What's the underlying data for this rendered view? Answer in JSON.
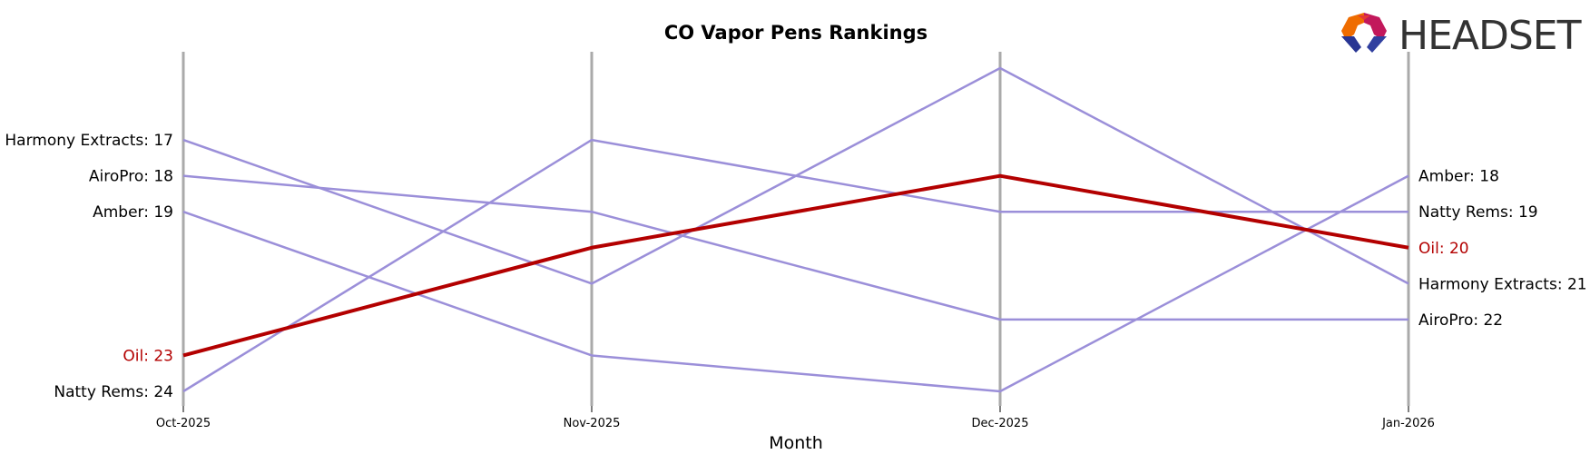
{
  "chart_data": {
    "type": "line",
    "title": "CO Vapor Pens Rankings",
    "xlabel": "Month",
    "ylabel": "",
    "categories": [
      "Oct-2025",
      "Nov-2025",
      "Dec-2025",
      "Jan-2026"
    ],
    "y_inverted": true,
    "ylim": [
      25,
      15
    ],
    "grid": false,
    "highlight_color": "#b30000",
    "series_color": "#9b8fd9",
    "axis_line_color": "#aaaaaa",
    "series": [
      {
        "name": "Harmony Extracts",
        "values": [
          17,
          21,
          15,
          21
        ],
        "highlight": false
      },
      {
        "name": "AiroPro",
        "values": [
          18,
          19,
          22,
          22
        ],
        "highlight": false
      },
      {
        "name": "Amber",
        "values": [
          19,
          23,
          24,
          18
        ],
        "highlight": false
      },
      {
        "name": "Natty Rems",
        "values": [
          24,
          17,
          19,
          19
        ],
        "highlight": false
      },
      {
        "name": "Oil",
        "values": [
          23,
          20,
          18,
          20
        ],
        "highlight": true
      }
    ],
    "left_labels": [
      {
        "text": "Harmony Extracts: 17",
        "series": "Harmony Extracts"
      },
      {
        "text": "AiroPro: 18",
        "series": "AiroPro"
      },
      {
        "text": "Amber: 19",
        "series": "Amber"
      },
      {
        "text": "Oil: 23",
        "series": "Oil"
      },
      {
        "text": "Natty Rems: 24",
        "series": "Natty Rems"
      }
    ],
    "right_labels": [
      {
        "text": "Amber: 18",
        "series": "Amber"
      },
      {
        "text": "Natty Rems: 19",
        "series": "Natty Rems"
      },
      {
        "text": "Oil: 20",
        "series": "Oil"
      },
      {
        "text": "Harmony Extracts: 21",
        "series": "Harmony Extracts"
      },
      {
        "text": "AiroPro: 22",
        "series": "AiroPro"
      }
    ]
  },
  "logo": {
    "text": "HEADSET"
  }
}
